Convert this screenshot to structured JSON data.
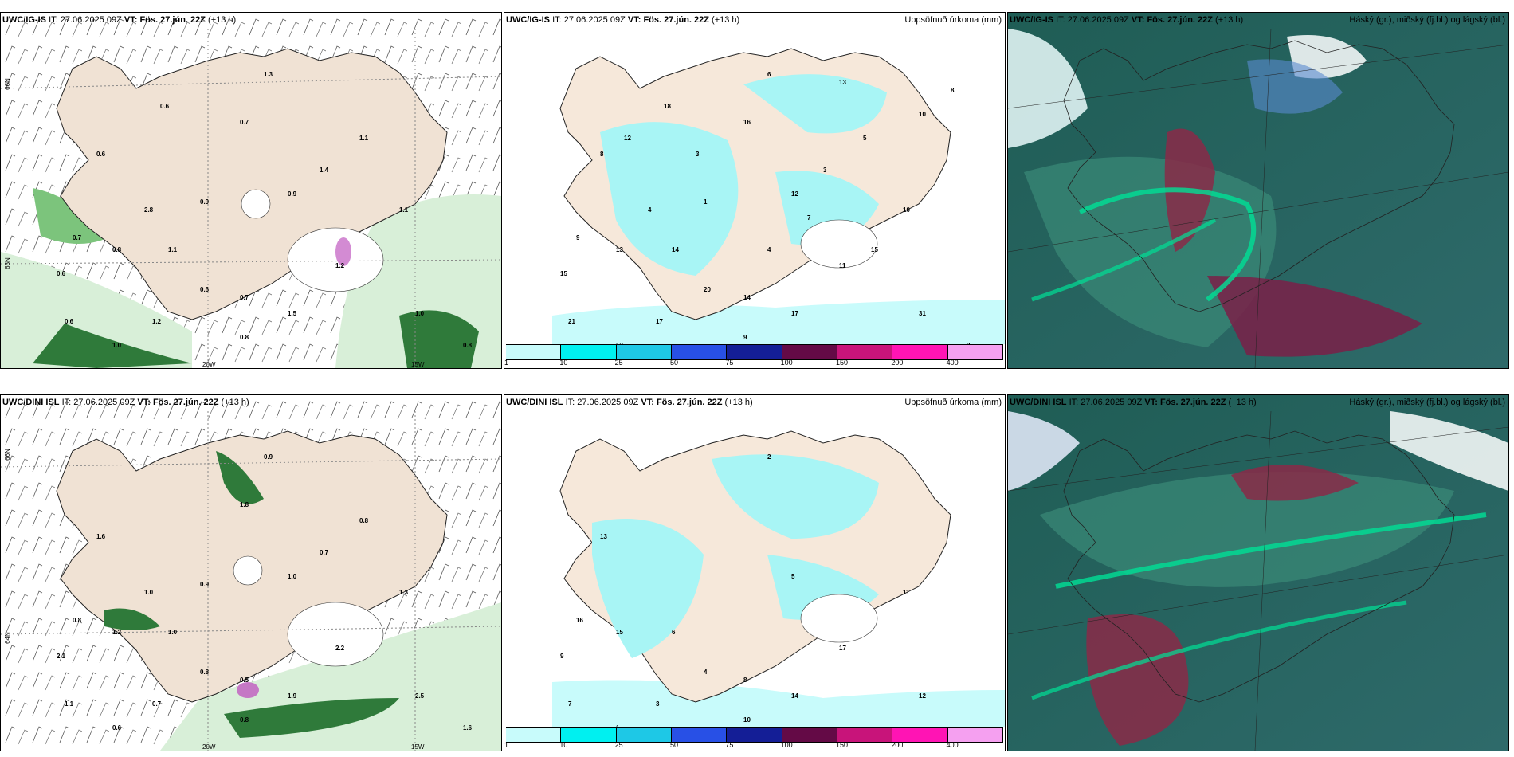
{
  "panels": [
    {
      "model": "UWC/IG-IS",
      "it_label": "IT:",
      "it": "27.06.2025 09Z",
      "vt_label": "VT:",
      "vt": "Fös. 27.jún. 22Z",
      "lead": "(+13 h)",
      "right_title": "",
      "lat_labels": [
        "66N",
        "65N",
        "63N"
      ],
      "lon_labels": [
        "20W",
        "15W",
        "25W"
      ],
      "values": [
        "1.3",
        "0.6",
        "0.9",
        "1.1",
        "0.7",
        "0.8",
        "1.1",
        "0.6",
        "0.6",
        "0.7",
        "0.6",
        "1.2",
        "1.0",
        "0.8",
        "1.5",
        "1.2",
        "1.0",
        "0.8",
        "1.4",
        "0.9",
        "2.8",
        "1.1",
        "0.7",
        "0.6"
      ]
    },
    {
      "model": "UWC/IG-IS",
      "it_label": "IT:",
      "it": "27.06.2025 09Z",
      "vt_label": "VT:",
      "vt": "Fös. 27.jún. 22Z",
      "lead": "(+13 h)",
      "right_title": "Uppsöfnuð úrkoma (mm)",
      "legend_ticks": [
        "1",
        "10",
        "25",
        "50",
        "75",
        "100",
        "150",
        "200",
        "400"
      ],
      "legend_colors": [
        "#c8fbfb",
        "#00f0f0",
        "#1ec8e6",
        "#2850e6",
        "#141e96",
        "#640a46",
        "#c8147a",
        "#ff14b4",
        "#f5a0f0"
      ],
      "values": [
        "6",
        "8",
        "12",
        "10",
        "9",
        "13",
        "14",
        "15",
        "20",
        "14",
        "21",
        "17",
        "13",
        "9",
        "17",
        "11",
        "31",
        "2",
        "3",
        "1",
        "4",
        "5",
        "16",
        "18",
        "13",
        "15",
        "12",
        "10",
        "8",
        "7",
        "4",
        "3"
      ]
    },
    {
      "model": "UWC/IG-IS",
      "it_label": "IT:",
      "it": "27.06.2025 09Z",
      "vt_label": "VT:",
      "vt": "Fös. 27.jún. 22Z",
      "lead": "(+13 h)",
      "right_title": "Háský (gr.), miðský (fj.bl.) og lágský (bl.)"
    },
    {
      "model": "UWC/DINI ISL",
      "it_label": "IT:",
      "it": "27.06.2025 09Z",
      "vt_label": "VT:",
      "vt": "Fös. 27.jún. 22Z",
      "lead": "(+13 h)",
      "right_title": "",
      "lat_labels": [
        "66N",
        "64N",
        "63N"
      ],
      "lon_labels": [
        "20W",
        "15W"
      ],
      "values": [
        "0.9",
        "1.6",
        "1.0",
        "1.3",
        "0.8",
        "1.2",
        "1.0",
        "2.1",
        "0.8",
        "0.5",
        "1.1",
        "0.7",
        "0.6",
        "0.8",
        "1.9",
        "2.2",
        "2.5",
        "1.6",
        "0.7",
        "0.9",
        "1.0",
        "0.8",
        "1.8"
      ]
    },
    {
      "model": "UWC/DINI ISL",
      "it_label": "IT:",
      "it": "27.06.2025 09Z",
      "vt_label": "VT:",
      "vt": "Fös. 27.jún. 22Z",
      "lead": "(+13 h)",
      "right_title": "Uppsöfnuð úrkoma (mm)",
      "legend_ticks": [
        "1",
        "10",
        "25",
        "50",
        "75",
        "100",
        "150",
        "200",
        "400"
      ],
      "legend_colors": [
        "#c8fbfb",
        "#00f0f0",
        "#1ec8e6",
        "#2850e6",
        "#141e96",
        "#640a46",
        "#c8147a",
        "#ff14b4",
        "#f5a0f0"
      ],
      "values": [
        "2",
        "13",
        "5",
        "11",
        "16",
        "15",
        "6",
        "9",
        "4",
        "8",
        "7",
        "3",
        "1",
        "10",
        "14",
        "17",
        "12"
      ]
    },
    {
      "model": "UWC/DINI ISL",
      "it_label": "IT:",
      "it": "27.06.2025 09Z",
      "vt_label": "VT:",
      "vt": "Fös. 27.jún. 22Z",
      "lead": "(+13 h)",
      "right_title": "Háský (gr.), miðský (fj.bl.) og lágský (bl.)"
    }
  ]
}
